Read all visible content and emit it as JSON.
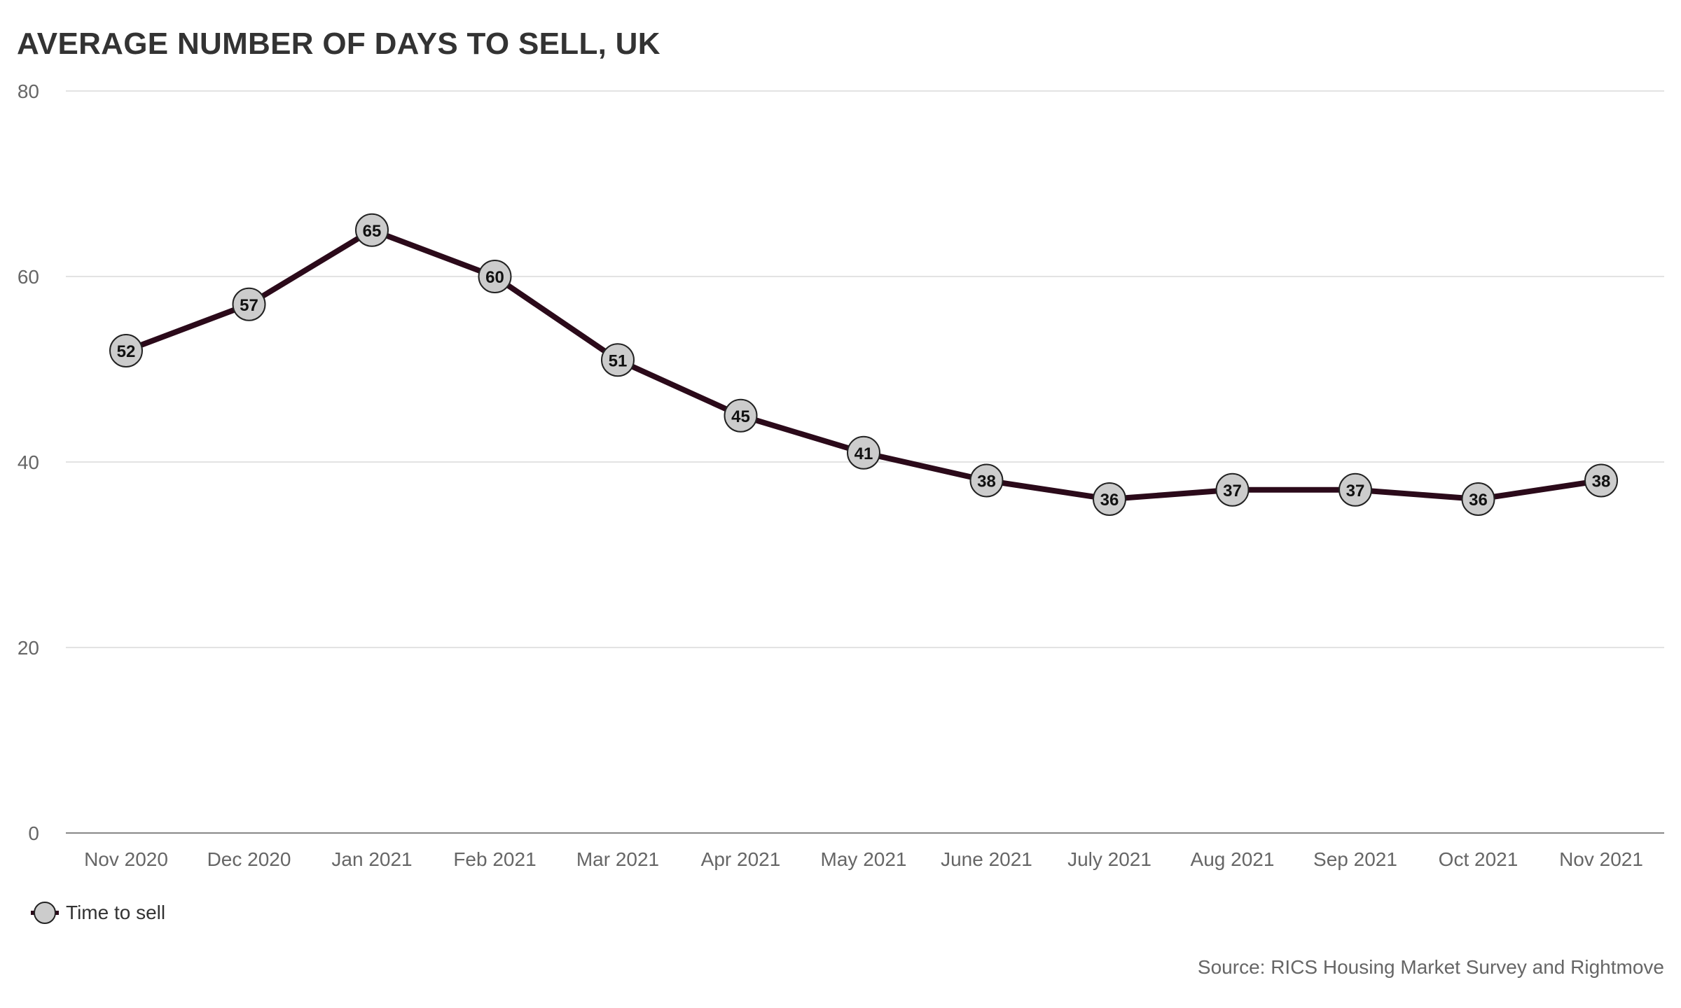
{
  "chart_data": {
    "type": "line",
    "title": "AVERAGE NUMBER OF DAYS TO SELL, UK",
    "xlabel": "",
    "ylabel": "",
    "categories": [
      "Nov 2020",
      "Dec 2020",
      "Jan 2021",
      "Feb 2021",
      "Mar 2021",
      "Apr 2021",
      "May 2021",
      "June 2021",
      "July 2021",
      "Aug 2021",
      "Sep 2021",
      "Oct 2021",
      "Nov 2021"
    ],
    "series": [
      {
        "name": "Time to sell",
        "values": [
          52,
          57,
          65,
          60,
          51,
          45,
          41,
          38,
          36,
          37,
          37,
          36,
          38
        ]
      }
    ],
    "ylim": [
      0,
      80
    ],
    "yticks": [
      0,
      20,
      40,
      60,
      80
    ],
    "grid": true,
    "legend_position": "bottom-left",
    "colors": {
      "line": "#2b0a1a",
      "marker_fill": "#cccccc",
      "marker_stroke": "#222222",
      "grid": "#e3e3e3",
      "axis": "#888888"
    }
  },
  "source": "Source: RICS Housing Market Survey and Rightmove"
}
